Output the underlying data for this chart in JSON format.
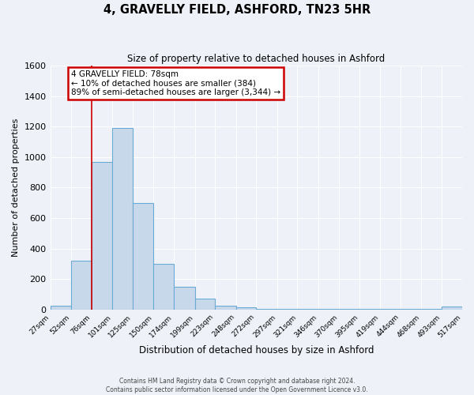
{
  "title": "4, GRAVELLY FIELD, ASHFORD, TN23 5HR",
  "subtitle": "Size of property relative to detached houses in Ashford",
  "xlabel": "Distribution of detached houses by size in Ashford",
  "ylabel": "Number of detached properties",
  "bar_color": "#c8d8eb",
  "bar_edge_color": "#6aaad4",
  "background_color": "#eef2f8",
  "grid_color": "#ffffff",
  "bin_edges": [
    27,
    52,
    76,
    101,
    125,
    150,
    174,
    199,
    223,
    248,
    272,
    297,
    321,
    346,
    370,
    395,
    419,
    444,
    468,
    493,
    517
  ],
  "bin_labels": [
    "27sqm",
    "52sqm",
    "76sqm",
    "101sqm",
    "125sqm",
    "150sqm",
    "174sqm",
    "199sqm",
    "223sqm",
    "248sqm",
    "272sqm",
    "297sqm",
    "321sqm",
    "346sqm",
    "370sqm",
    "395sqm",
    "419sqm",
    "444sqm",
    "468sqm",
    "493sqm",
    "517sqm"
  ],
  "counts": [
    25,
    320,
    970,
    1190,
    700,
    300,
    150,
    70,
    25,
    15,
    5,
    5,
    2,
    2,
    2,
    2,
    2,
    2,
    2,
    20
  ],
  "ylim": [
    0,
    1600
  ],
  "yticks": [
    0,
    200,
    400,
    600,
    800,
    1000,
    1200,
    1400,
    1600
  ],
  "property_line_x": 76,
  "annotation_text_line1": "4 GRAVELLY FIELD: 78sqm",
  "annotation_text_line2": "← 10% of detached houses are smaller (384)",
  "annotation_text_line3": "89% of semi-detached houses are larger (3,344) →",
  "annotation_box_color": "#ffffff",
  "annotation_box_edge_color": "#cc0000",
  "red_line_color": "#cc0000",
  "footer_line1": "Contains HM Land Registry data © Crown copyright and database right 2024.",
  "footer_line2": "Contains public sector information licensed under the Open Government Licence v3.0."
}
